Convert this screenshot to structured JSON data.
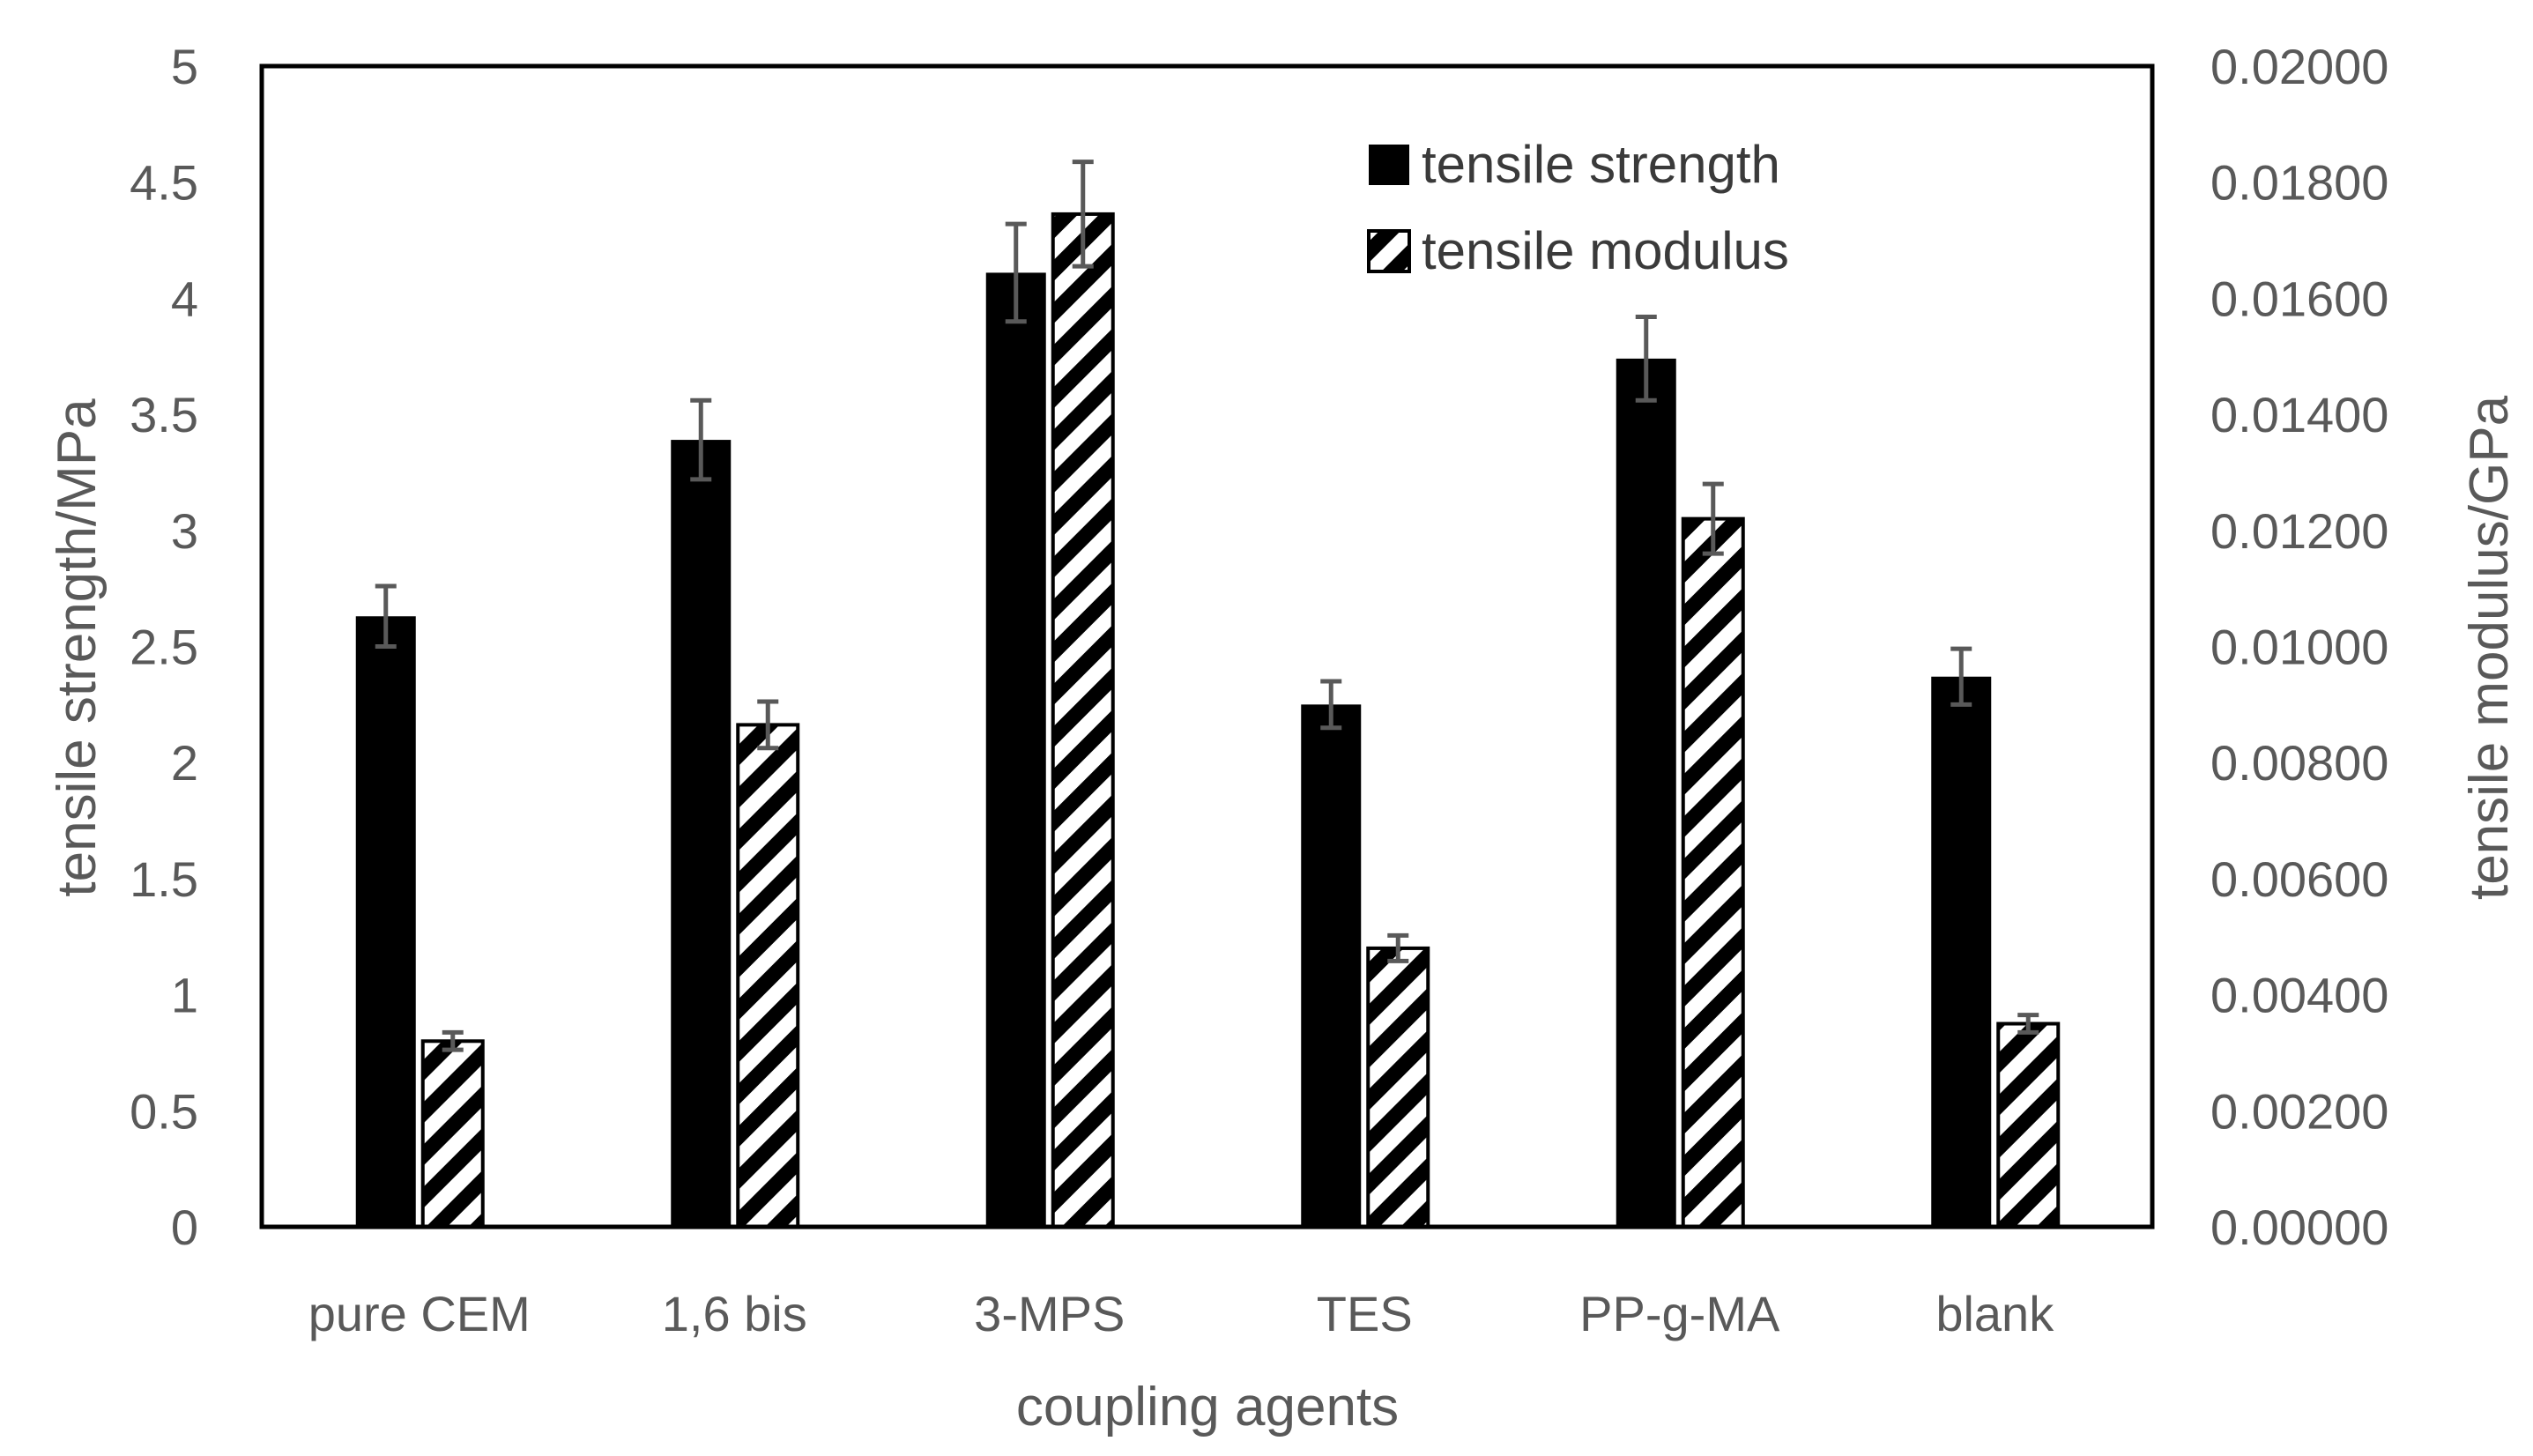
{
  "chart_data": {
    "type": "bar",
    "categories": [
      "pure CEM",
      "1,6 bis",
      "3-MPS",
      "TES",
      "PP-g-MA",
      "blank"
    ],
    "xlabel": "coupling agents",
    "ylabel": "tensile strength/MPa",
    "y2label": "tensile modulus/GPa",
    "ylim": [
      0,
      5
    ],
    "y2lim": [
      0,
      0.02
    ],
    "yticks": [
      "0",
      "0.5",
      "1",
      "1.5",
      "2",
      "2.5",
      "3",
      "3.5",
      "4",
      "4.5",
      "5"
    ],
    "y2ticks": [
      "0.00000",
      "0.00200",
      "0.00400",
      "0.00600",
      "0.00800",
      "0.01000",
      "0.01200",
      "0.01400",
      "0.01600",
      "0.01800",
      "0.02000"
    ],
    "legend_position": "top-center",
    "series": [
      {
        "name": "tensile strength",
        "axis": "left",
        "style": "solid-black",
        "values": [
          2.63,
          3.39,
          4.11,
          2.25,
          3.74,
          2.37
        ],
        "errors": [
          0.13,
          0.17,
          0.21,
          0.1,
          0.18,
          0.12
        ]
      },
      {
        "name": "tensile modulus",
        "axis": "right",
        "style": "hatched",
        "values": [
          0.0032,
          0.00865,
          0.01745,
          0.0048,
          0.0122,
          0.0035
        ],
        "errors": [
          0.00015,
          0.0004,
          0.0009,
          0.00022,
          0.0006,
          0.00015
        ]
      }
    ]
  }
}
